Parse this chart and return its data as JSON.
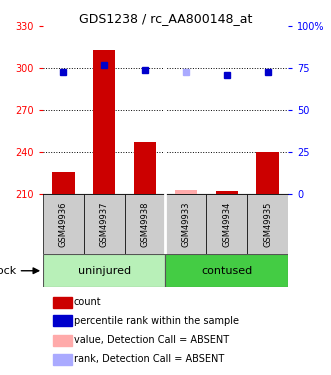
{
  "title": "GDS1238 / rc_AA800148_at",
  "samples": [
    "GSM49936",
    "GSM49937",
    "GSM49938",
    "GSM49933",
    "GSM49934",
    "GSM49935"
  ],
  "group_labels": [
    "uninjured",
    "contused"
  ],
  "bar_values": [
    226,
    313,
    247,
    213,
    212,
    240
  ],
  "bar_absent": [
    false,
    false,
    false,
    true,
    false,
    false
  ],
  "bar_color_present": "#cc0000",
  "bar_color_absent": "#ffaaaa",
  "dot_values_right": [
    73,
    77,
    74,
    73,
    71,
    73
  ],
  "dot_absent": [
    false,
    false,
    false,
    true,
    false,
    false
  ],
  "dot_color_present": "#0000cc",
  "dot_color_absent": "#aaaaff",
  "ylim_left": [
    210,
    330
  ],
  "ylim_right": [
    0,
    100
  ],
  "yticks_left": [
    210,
    240,
    270,
    300,
    330
  ],
  "yticks_right": [
    0,
    25,
    50,
    75,
    100
  ],
  "ytick_labels_right": [
    "0",
    "25",
    "50",
    "75",
    "100%"
  ],
  "bar_bottom": 210,
  "hlines": [
    240,
    270,
    300
  ],
  "shock_label": "shock",
  "group_color_uninjured": "#b8f0b8",
  "group_color_contused": "#44cc44",
  "sample_box_color": "#cccccc",
  "legend_items": [
    {
      "label": "count",
      "color": "#cc0000"
    },
    {
      "label": "percentile rank within the sample",
      "color": "#0000cc"
    },
    {
      "label": "value, Detection Call = ABSENT",
      "color": "#ffaaaa"
    },
    {
      "label": "rank, Detection Call = ABSENT",
      "color": "#aaaaff"
    }
  ]
}
